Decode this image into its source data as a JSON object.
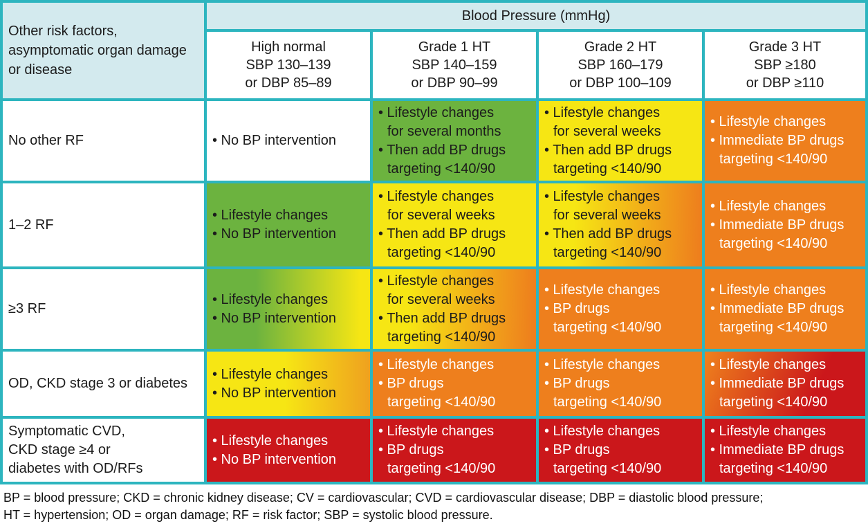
{
  "chart_data": {
    "type": "table",
    "title": "Blood Pressure (mmHg)",
    "corner_header_lines": [
      "Other risk factors,",
      "asymptomatic organ damage",
      "or disease"
    ],
    "column_headers": [
      {
        "lines": [
          "High normal",
          "SBP 130–139",
          "or DBP 85–89"
        ]
      },
      {
        "lines": [
          "Grade 1 HT",
          "SBP 140–159",
          "or DBP 90–99"
        ]
      },
      {
        "lines": [
          "Grade 2 HT",
          "SBP 160–179",
          "or DBP 100–109"
        ]
      },
      {
        "lines": [
          "Grade 3 HT",
          "SBP ≥180",
          "or DBP ≥110"
        ]
      }
    ],
    "rows": [
      {
        "label_lines": [
          "No other RF"
        ],
        "cells": [
          {
            "fill": "white",
            "text": "dark",
            "lines": [
              "• No BP intervention"
            ]
          },
          {
            "fill": "green",
            "text": "dark",
            "lines": [
              "• Lifestyle changes",
              "for several months",
              "• Then add BP drugs",
              "targeting <140/90"
            ]
          },
          {
            "fill": "yellow",
            "text": "dark",
            "lines": [
              "• Lifestyle changes",
              "for several weeks",
              "• Then add BP drugs",
              "targeting <140/90"
            ]
          },
          {
            "fill": "orange",
            "text": "light",
            "lines": [
              "• Lifestyle changes",
              "• Immediate BP drugs",
              "targeting <140/90"
            ]
          }
        ]
      },
      {
        "label_lines": [
          "1–2 RF"
        ],
        "cells": [
          {
            "fill": "green",
            "text": "dark",
            "lines": [
              "• Lifestyle changes",
              "• No BP intervention"
            ]
          },
          {
            "fill": "yellow",
            "text": "dark",
            "lines": [
              "• Lifestyle changes",
              "for several weeks",
              "• Then add BP drugs",
              "targeting <140/90"
            ]
          },
          {
            "fill": "yellow-orange",
            "text": "dark",
            "lines": [
              "• Lifestyle changes",
              "for several weeks",
              "• Then add BP drugs",
              "targeting <140/90"
            ]
          },
          {
            "fill": "orange",
            "text": "light",
            "lines": [
              "• Lifestyle changes",
              "• Immediate BP drugs",
              "targeting <140/90"
            ]
          }
        ]
      },
      {
        "label_lines": [
          "≥3 RF"
        ],
        "cells": [
          {
            "fill": "green-yellow",
            "text": "dark",
            "lines": [
              "• Lifestyle changes",
              "• No BP intervention"
            ]
          },
          {
            "fill": "yellow-orange",
            "text": "dark",
            "lines": [
              "• Lifestyle changes",
              "for several weeks",
              "• Then add BP drugs",
              "targeting <140/90"
            ]
          },
          {
            "fill": "orange",
            "text": "light",
            "lines": [
              "• Lifestyle changes",
              "• BP drugs",
              "targeting <140/90"
            ]
          },
          {
            "fill": "orange",
            "text": "light",
            "lines": [
              "• Lifestyle changes",
              "• Immediate BP drugs",
              "targeting <140/90"
            ]
          }
        ]
      },
      {
        "label_lines": [
          "OD, CKD stage 3 or diabetes"
        ],
        "cells": [
          {
            "fill": "yellow-amber",
            "text": "dark",
            "lines": [
              "• Lifestyle changes",
              "• No BP intervention"
            ]
          },
          {
            "fill": "orange",
            "text": "light",
            "lines": [
              "• Lifestyle changes",
              "• BP drugs",
              "targeting <140/90"
            ]
          },
          {
            "fill": "orange",
            "text": "light",
            "lines": [
              "• Lifestyle changes",
              "• BP drugs",
              "targeting <140/90"
            ]
          },
          {
            "fill": "orange-red",
            "text": "light",
            "lines": [
              "• Lifestyle changes",
              "• Immediate BP drugs",
              "targeting <140/90"
            ]
          }
        ]
      },
      {
        "label_lines": [
          "Symptomatic CVD,",
          "CKD stage ≥4 or",
          "diabetes with OD/RFs"
        ],
        "cells": [
          {
            "fill": "red",
            "text": "light",
            "lines": [
              "• Lifestyle changes",
              "• No BP intervention"
            ]
          },
          {
            "fill": "red",
            "text": "light",
            "lines": [
              "• Lifestyle changes",
              "• BP drugs",
              "targeting <140/90"
            ]
          },
          {
            "fill": "red",
            "text": "light",
            "lines": [
              "• Lifestyle changes",
              "• BP drugs",
              "targeting <140/90"
            ]
          },
          {
            "fill": "red",
            "text": "light",
            "lines": [
              "• Lifestyle changes",
              "• Immediate BP drugs",
              "targeting <140/90"
            ]
          }
        ]
      }
    ]
  },
  "footnote_lines": [
    "BP = blood pressure;  CKD = chronic kidney disease; CV = cardiovascular; CVD = cardiovascular disease; DBP = diastolic blood pressure;",
    "HT = hypertension; OD = organ damage; RF = risk factor; SBP = systolic blood pressure."
  ],
  "colors": {
    "border_teal": "#2db5bf",
    "header_blue": "#d3eaee",
    "cell_white": "#ffffff",
    "green": "#6cb33f",
    "yellow": "#f6e614",
    "orange": "#ee7f1d",
    "amber": "#efa11f",
    "red": "#cb171b",
    "text_dark": "#1c1c1c",
    "text_light": "#ffffff"
  }
}
